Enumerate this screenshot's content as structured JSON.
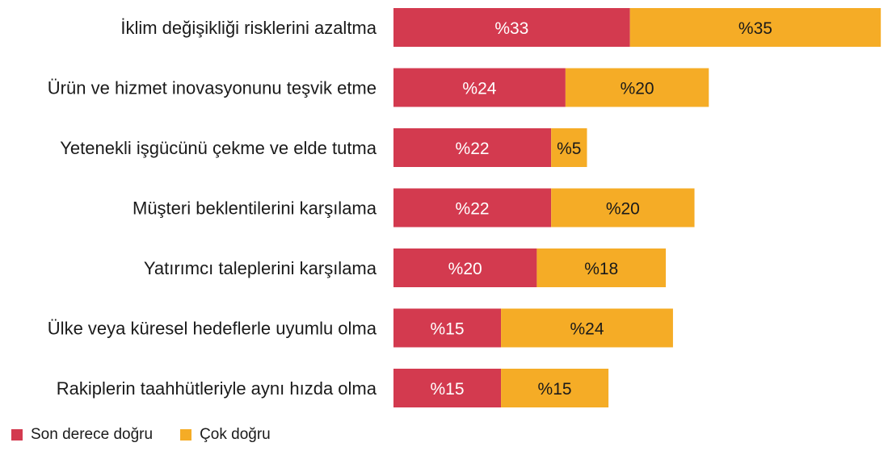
{
  "colors": {
    "series1": "#d33a4f",
    "series2": "#f5ac26"
  },
  "chart_data": {
    "type": "bar",
    "orientation": "horizontal",
    "stacked": true,
    "categories": [
      "İklim değişikliği risklerini azaltma",
      "Ürün ve hizmet inovasyonunu teşvik etme",
      "Yetenekli işgücünü çekme ve elde tutma",
      "Müşteri beklentilerini karşılama",
      "Yatırımcı taleplerini karşılama",
      "Ülke veya küresel hedeflerle uyumlu olma",
      "Rakiplerin taahhütleriyle aynı hızda olma"
    ],
    "series": [
      {
        "name": "Son derece doğru",
        "values": [
          33,
          24,
          22,
          22,
          20,
          15,
          15
        ],
        "labels": [
          "%33",
          "%24",
          "%22",
          "%22",
          "%20",
          "%15",
          "%15"
        ]
      },
      {
        "name": "Çok doğru",
        "values": [
          35,
          20,
          5,
          20,
          18,
          24,
          15
        ],
        "labels": [
          "%35",
          "%20",
          "%5",
          "%20",
          "%18",
          "%24",
          "%15"
        ]
      }
    ],
    "xlim": [
      0,
      68
    ],
    "grid": false,
    "legend_position": "bottom-left"
  }
}
